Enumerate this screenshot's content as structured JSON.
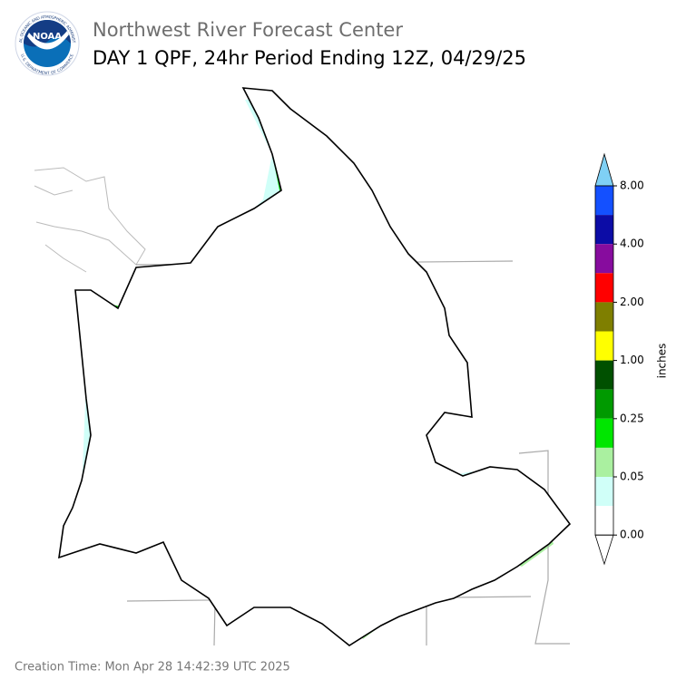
{
  "header": {
    "title": "Northwest River Forecast Center",
    "subtitle": "DAY 1 QPF, 24hr Period Ending 12Z, 04/29/25"
  },
  "logo": {
    "text": "NOAA",
    "ring_top": "NATIONAL OCEANIC AND ATMOSPHERIC ADMINISTRATION",
    "ring_bottom": "U.S. DEPARTMENT OF COMMERCE"
  },
  "legend": {
    "label": "inches",
    "colors": [
      "#7fd0f5",
      "#1450ff",
      "#0c0ca6",
      "#870c9e",
      "#ff0000",
      "#7f7f00",
      "#ffff00",
      "#005000",
      "#009a00",
      "#00e600",
      "#aaf0a0",
      "#d0fff8",
      "#ffffff",
      "#ffffff"
    ],
    "ticks": [
      "8.00",
      "4.00",
      "2.00",
      "1.00",
      "0.25",
      "0.05",
      "0.00"
    ]
  },
  "footer": {
    "creation_time": "Creation Time: Mon Apr 28 14:42:39 UTC 2025"
  }
}
